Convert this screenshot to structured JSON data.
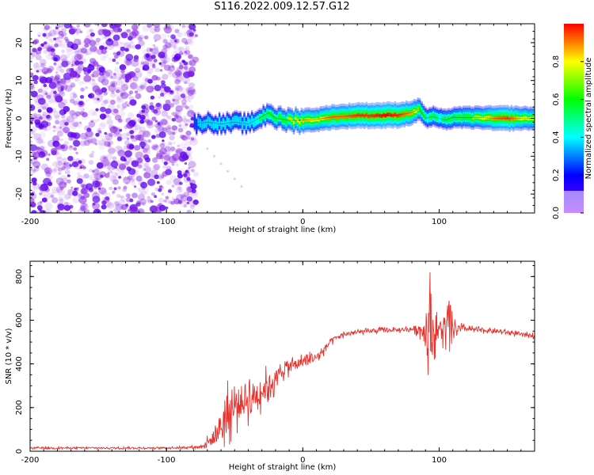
{
  "title": "S116.2022.009.12.57.G12",
  "chart_data": [
    {
      "type": "heatmap",
      "xlabel": "Height of straight line (km)",
      "ylabel": "Frequency (Hz)",
      "xlim": [
        -200,
        170
      ],
      "ylim": [
        -25,
        25
      ],
      "x_ticks": [
        -200,
        -100,
        0,
        100
      ],
      "y_ticks": [
        -20,
        -10,
        0,
        10,
        20
      ],
      "colorbar": {
        "label": "Normalized spectral amplitude",
        "range": [
          0,
          1
        ],
        "ticks": [
          0.0,
          0.2,
          0.4,
          0.6,
          0.8
        ],
        "tick_labels": [
          "0.0",
          "0.2",
          "0.4",
          "0.6",
          "0.8"
        ]
      },
      "noise_region_x": [
        -200,
        -78
      ],
      "ridge": {
        "x": [
          -80,
          -70,
          -60,
          -50,
          -40,
          -30,
          -25,
          -20,
          -10,
          0,
          10,
          20,
          30,
          40,
          50,
          60,
          70,
          80,
          85,
          90,
          95,
          100,
          105,
          110,
          120,
          130,
          140,
          150,
          160,
          170
        ],
        "y": [
          -1.5,
          -1.0,
          -1.5,
          -1.0,
          -1.5,
          0.5,
          1.5,
          0.0,
          -0.5,
          -0.5,
          -0.3,
          0.3,
          0.5,
          0.8,
          0.7,
          0.8,
          0.9,
          1.5,
          2.5,
          0.0,
          0.5,
          0.0,
          -0.5,
          0.3,
          0.2,
          0.2,
          0.0,
          0.0,
          0.0,
          0.0
        ],
        "amplitude": [
          0.35,
          0.4,
          0.45,
          0.4,
          0.45,
          0.55,
          0.6,
          0.6,
          0.75,
          0.85,
          0.8,
          0.9,
          0.9,
          0.95,
          0.95,
          1.0,
          0.95,
          0.85,
          0.7,
          0.5,
          0.55,
          0.5,
          0.6,
          0.6,
          0.7,
          0.75,
          0.9,
          0.95,
          0.8,
          0.75
        ]
      },
      "colors": [
        "#7f00ff",
        "#0000ff",
        "#00ffff",
        "#00ff00",
        "#ffff00",
        "#ff0000"
      ]
    },
    {
      "type": "line",
      "xlabel": "Height of straight line (km)",
      "ylabel": "SNR (10 * v/v)",
      "xlim": [
        -200,
        170
      ],
      "ylim": [
        0,
        870
      ],
      "x_ticks": [
        -200,
        -100,
        0,
        100
      ],
      "y_ticks": [
        0,
        200,
        400,
        600,
        800
      ],
      "series": [
        {
          "color": "#e8322d",
          "x": [
            -200,
            -150,
            -100,
            -75,
            -65,
            -60,
            -55,
            -50,
            -45,
            -40,
            -35,
            -30,
            -25,
            -20,
            -15,
            -10,
            -5,
            0,
            5,
            10,
            15,
            20,
            25,
            30,
            40,
            50,
            60,
            70,
            80,
            85,
            90,
            93,
            95,
            97,
            100,
            105,
            108,
            110,
            120,
            130,
            140,
            150,
            160,
            170
          ],
          "y": [
            15,
            15,
            15,
            20,
            60,
            120,
            170,
            200,
            230,
            240,
            260,
            280,
            300,
            330,
            370,
            390,
            400,
            410,
            420,
            430,
            460,
            500,
            520,
            535,
            545,
            550,
            555,
            555,
            560,
            560,
            550,
            580,
            560,
            540,
            560,
            550,
            560,
            560,
            560,
            555,
            550,
            545,
            535,
            530
          ],
          "noise": [
            6,
            6,
            6,
            8,
            60,
            120,
            160,
            140,
            140,
            130,
            120,
            110,
            100,
            80,
            60,
            50,
            40,
            40,
            40,
            35,
            30,
            25,
            20,
            18,
            15,
            15,
            15,
            15,
            20,
            40,
            120,
            280,
            200,
            120,
            60,
            200,
            160,
            50,
            20,
            15,
            15,
            15,
            15,
            15
          ]
        }
      ]
    }
  ]
}
